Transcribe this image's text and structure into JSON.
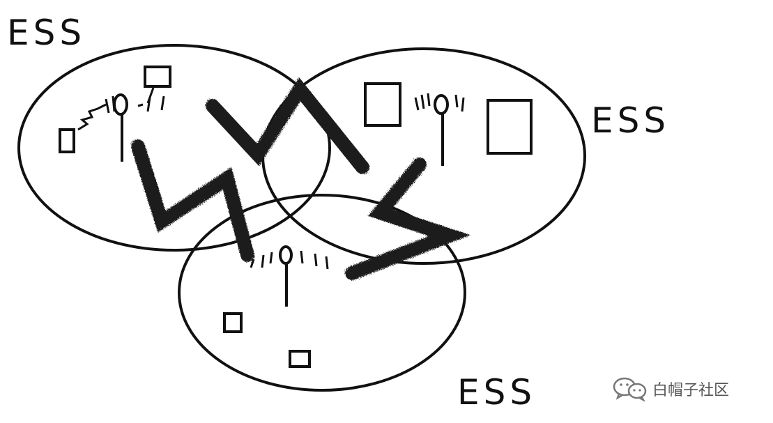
{
  "labels": {
    "ess_top_left": "ESS",
    "ess_right": "ESS",
    "ess_bottom": "ESS"
  },
  "watermark": {
    "text": "白帽子社区",
    "icon": "wechat-icon"
  },
  "colors": {
    "stroke": "#111111",
    "interference": "#1a1a1a",
    "background": "#ffffff"
  }
}
